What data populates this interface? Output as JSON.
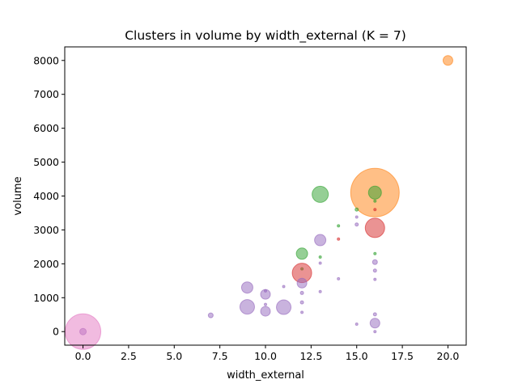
{
  "chart_data": {
    "type": "scatter",
    "title": "Clusters in volume by width_external (K = 7)",
    "xlabel": "width_external",
    "ylabel": "volume",
    "xlim": [
      -1,
      21
    ],
    "ylim": [
      -400,
      8400
    ],
    "xticks": [
      0.0,
      2.5,
      5.0,
      7.5,
      10.0,
      12.5,
      15.0,
      17.5,
      20.0
    ],
    "xtick_labels": [
      "0.0",
      "2.5",
      "5.0",
      "7.5",
      "10.0",
      "12.5",
      "15.0",
      "17.5",
      "20.0"
    ],
    "yticks": [
      0,
      1000,
      2000,
      3000,
      4000,
      5000,
      6000,
      7000,
      8000
    ],
    "ytick_labels": [
      "0",
      "1000",
      "2000",
      "3000",
      "4000",
      "5000",
      "6000",
      "7000",
      "8000"
    ],
    "grid": false,
    "legend": false,
    "series": [
      {
        "color": "#ff7f0e",
        "points": [
          {
            "x": 20,
            "y": 8000,
            "r": 6
          },
          {
            "x": 16,
            "y": 4100,
            "r": 30
          }
        ]
      },
      {
        "color": "#2ca02c",
        "points": [
          {
            "x": 13,
            "y": 4050,
            "r": 10
          },
          {
            "x": 16,
            "y": 4100,
            "r": 8
          },
          {
            "x": 12,
            "y": 2300,
            "r": 7
          },
          {
            "x": 15,
            "y": 3600,
            "r": 2
          },
          {
            "x": 14,
            "y": 3120,
            "r": 1.5
          },
          {
            "x": 16,
            "y": 2300,
            "r": 1.5
          },
          {
            "x": 13,
            "y": 2200,
            "r": 1.5
          },
          {
            "x": 16,
            "y": 3850,
            "r": 1.5
          },
          {
            "x": 12,
            "y": 1850,
            "r": 1.5
          }
        ]
      },
      {
        "color": "#d62728",
        "points": [
          {
            "x": 16,
            "y": 3060,
            "r": 12
          },
          {
            "x": 12,
            "y": 1730,
            "r": 12
          },
          {
            "x": 14,
            "y": 2730,
            "r": 1.5
          },
          {
            "x": 16,
            "y": 3600,
            "r": 1.5
          }
        ]
      },
      {
        "color": "#9467bd",
        "points": [
          {
            "x": 13,
            "y": 2700,
            "r": 7
          },
          {
            "x": 9,
            "y": 1300,
            "r": 7
          },
          {
            "x": 9,
            "y": 730,
            "r": 9
          },
          {
            "x": 11,
            "y": 720,
            "r": 9
          },
          {
            "x": 10,
            "y": 1100,
            "r": 6
          },
          {
            "x": 10,
            "y": 600,
            "r": 6
          },
          {
            "x": 12,
            "y": 1430,
            "r": 6
          },
          {
            "x": 16,
            "y": 250,
            "r": 6
          },
          {
            "x": 0,
            "y": 0,
            "r": 4
          },
          {
            "x": 7,
            "y": 480,
            "r": 3
          },
          {
            "x": 12,
            "y": 1140,
            "r": 2
          },
          {
            "x": 12,
            "y": 860,
            "r": 2
          },
          {
            "x": 12,
            "y": 570,
            "r": 1.5
          },
          {
            "x": 13,
            "y": 2020,
            "r": 1.5
          },
          {
            "x": 13,
            "y": 1180,
            "r": 1.5
          },
          {
            "x": 14,
            "y": 1560,
            "r": 1.5
          },
          {
            "x": 15,
            "y": 3380,
            "r": 1.5
          },
          {
            "x": 15,
            "y": 3160,
            "r": 2
          },
          {
            "x": 15,
            "y": 220,
            "r": 1.5
          },
          {
            "x": 16,
            "y": 2050,
            "r": 3
          },
          {
            "x": 16,
            "y": 1800,
            "r": 2
          },
          {
            "x": 16,
            "y": 1540,
            "r": 1.5
          },
          {
            "x": 16,
            "y": 510,
            "r": 2
          },
          {
            "x": 16,
            "y": 0,
            "r": 1.5
          },
          {
            "x": 10,
            "y": 800,
            "r": 1.5
          },
          {
            "x": 11,
            "y": 1330,
            "r": 1.5
          },
          {
            "x": 10,
            "y": 1200,
            "r": 1.5
          }
        ]
      },
      {
        "color": "#e377c2",
        "points": [
          {
            "x": 0,
            "y": 0,
            "r": 22
          }
        ]
      }
    ]
  }
}
